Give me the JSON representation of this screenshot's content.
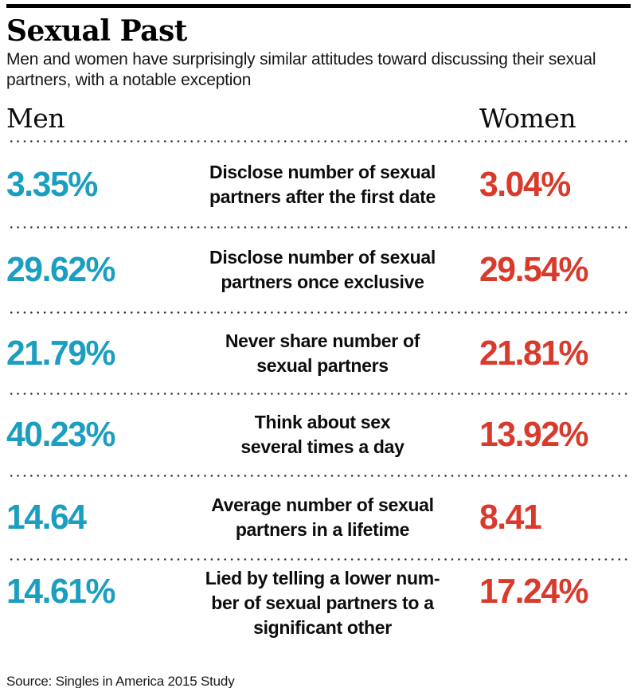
{
  "header": {
    "title": "Sexual Past",
    "subtitle": "Men and women have surprisingly similar attitudes toward discussing their sexual partners, with a notable exception"
  },
  "columns": {
    "left": "Men",
    "right": "Women"
  },
  "colors": {
    "men": "#1b9ec0",
    "women": "#d93a2b"
  },
  "rows": [
    {
      "men": "3.35%",
      "label": "Disclose number of sexual\npartners after the first date",
      "women": "3.04%"
    },
    {
      "men": "29.62%",
      "label": "Disclose number of sexual\npartners once exclusive",
      "women": "29.54%"
    },
    {
      "men": "21.79%",
      "label": "Never share number of\nsexual partners",
      "women": "21.81%"
    },
    {
      "men": "40.23%",
      "label": "Think about sex\nseveral times a day",
      "women": "13.92%"
    },
    {
      "men": "14.64",
      "label": "Average number of sexual\npartners in a lifetime",
      "women": "8.41"
    },
    {
      "men": "14.61%",
      "label": "Lied by telling a lower num-\nber of sexual partners to a\nsignificant other",
      "women": "17.24%"
    }
  ],
  "source": "Source: Singles in America 2015 Study",
  "chart_data": {
    "type": "table",
    "title": "Sexual Past",
    "subtitle": "Men and women have surprisingly similar attitudes toward discussing their sexual partners, with a notable exception",
    "columns": [
      "Men",
      "Women"
    ],
    "rows": [
      {
        "label": "Disclose number of sexual partners after the first date",
        "men": 3.35,
        "women": 3.04,
        "unit": "%"
      },
      {
        "label": "Disclose number of sexual partners once exclusive",
        "men": 29.62,
        "women": 29.54,
        "unit": "%"
      },
      {
        "label": "Never share number of sexual partners",
        "men": 21.79,
        "women": 21.81,
        "unit": "%"
      },
      {
        "label": "Think about sex several times a day",
        "men": 40.23,
        "women": 13.92,
        "unit": "%"
      },
      {
        "label": "Average number of sexual partners in a lifetime",
        "men": 14.64,
        "women": 8.41,
        "unit": "count"
      },
      {
        "label": "Lied by telling a lower number of sexual partners to a significant other",
        "men": 14.61,
        "women": 17.24,
        "unit": "%"
      }
    ],
    "legend": [
      {
        "name": "Men",
        "color": "#1b9ec0"
      },
      {
        "name": "Women",
        "color": "#d93a2b"
      }
    ],
    "source": "Singles in America 2015 Study"
  }
}
